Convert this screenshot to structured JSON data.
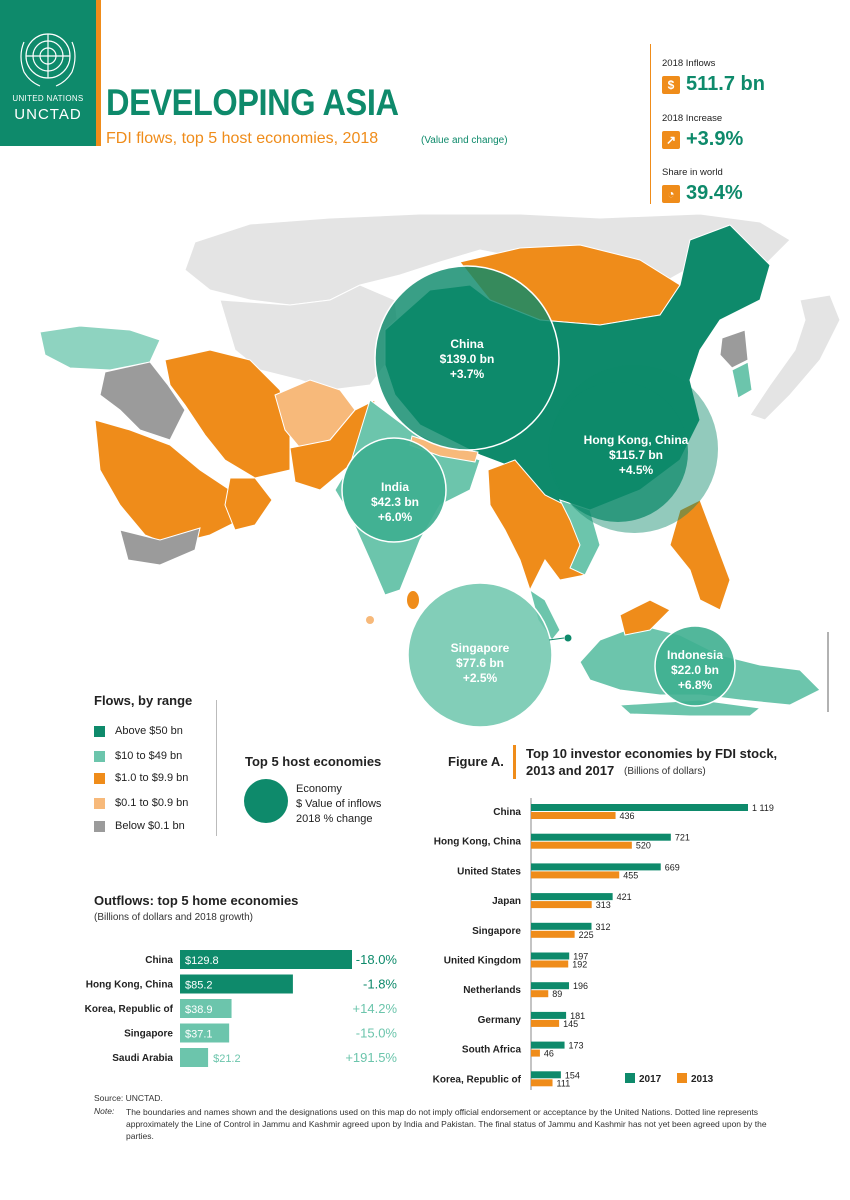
{
  "logo": {
    "org": "UNITED NATIONS",
    "name": "UNCTAD"
  },
  "header": {
    "title": "DEVELOPING ASIA",
    "subtitle": "FDI flows, top 5 host economies, 2018",
    "subtitle_note": "(Value and change)"
  },
  "kpis": [
    {
      "label": "2018 Inflows",
      "icon": "dollar-icon",
      "icon_glyph": "$",
      "value": "511.7 bn"
    },
    {
      "label": "2018 Increase",
      "icon": "growth-chart-icon",
      "icon_glyph": "↗",
      "value": "+3.9%"
    },
    {
      "label": "Share in world",
      "icon": "pie-icon",
      "icon_glyph": "◔",
      "value": "39.4%"
    }
  ],
  "colors": {
    "above50": "#0e8a6b",
    "r10to49": "#6cc5ac",
    "r1to9": "#ef8c1a",
    "r01to09": "#f7b97a",
    "below01": "#9b9b9b",
    "accent": "#ef8c1a",
    "series2017": "#0e8a6b",
    "series2013": "#ef8c1a"
  },
  "map_bubbles": [
    {
      "name": "China",
      "value": "$139.0 bn",
      "change": "+3.7%"
    },
    {
      "name": "Hong Kong, China",
      "value": "$115.7 bn",
      "change": "+4.5%"
    },
    {
      "name": "India",
      "value": "$42.3 bn",
      "change": "+6.0%"
    },
    {
      "name": "Singapore",
      "value": "$77.6 bn",
      "change": "+2.5%"
    },
    {
      "name": "Indonesia",
      "value": "$22.0 bn",
      "change": "+6.8%"
    }
  ],
  "legend": {
    "title": "Flows, by range",
    "items": [
      {
        "label": "Above $50 bn",
        "color": "#0e8a6b"
      },
      {
        "label": "$10 to $49 bn",
        "color": "#6cc5ac"
      },
      {
        "label": "$1.0 to $9.9 bn",
        "color": "#ef8c1a"
      },
      {
        "label": "$0.1 to $0.9 bn",
        "color": "#f7b97a"
      },
      {
        "label": "Below $0.1 bn",
        "color": "#9b9b9b"
      }
    ]
  },
  "top5": {
    "title": "Top 5 host economies",
    "lines": [
      "Economy",
      "$ Value of inflows",
      "2018 % change"
    ]
  },
  "figure_a": {
    "label": "Figure A.",
    "title_line1": "Top 10 investor economies by FDI stock,",
    "title_line2": "2013 and 2017",
    "unit": "(Billions of dollars)"
  },
  "outflows": {
    "title": "Outflows: top 5 home economies",
    "subtitle": "(Billions of dollars and 2018 growth)"
  },
  "footer": {
    "source": "Source: UNCTAD.",
    "note_label": "Note:",
    "note": "The boundaries and names shown and the designations used on this map do not imply official endorsement or acceptance by the United Nations. Dotted line represents approximately the Line of Control in Jammu and Kashmir agreed upon by India and Pakistan. The final status of Jammu and Kashmir has not yet been agreed upon by the parties."
  },
  "chart_data": [
    {
      "type": "bar",
      "orientation": "horizontal",
      "title": "Top 10 investor economies by FDI stock, 2013 and 2017",
      "unit": "(Billions of dollars)",
      "categories": [
        "China",
        "Hong Kong, China",
        "United States",
        "Japan",
        "Singapore",
        "United Kingdom",
        "Netherlands",
        "Germany",
        "South Africa",
        "Korea, Republic of"
      ],
      "series": [
        {
          "name": "2017",
          "color": "#0e8a6b",
          "values": [
            1119,
            721,
            669,
            421,
            312,
            197,
            196,
            181,
            173,
            154
          ],
          "labels": [
            "1 119",
            "721",
            "669",
            "421",
            "312",
            "197",
            "196",
            "181",
            "173",
            "154"
          ]
        },
        {
          "name": "2013",
          "color": "#ef8c1a",
          "values": [
            436,
            520,
            455,
            313,
            225,
            192,
            89,
            145,
            46,
            111
          ],
          "labels": [
            "436",
            "520",
            "455",
            "313",
            "225",
            "192",
            "89",
            "145",
            "46",
            "111"
          ]
        }
      ],
      "legend_position": "bottom-right",
      "xlim": [
        0,
        1119
      ]
    },
    {
      "type": "bar",
      "orientation": "horizontal",
      "title": "Outflows: top 5 home economies",
      "unit": "(Billions of dollars and 2018 growth)",
      "categories": [
        "China",
        "Hong Kong, China",
        "Korea, Republic of",
        "Singapore",
        "Saudi Arabia"
      ],
      "values": [
        129.8,
        85.2,
        38.9,
        37.1,
        21.2
      ],
      "value_labels": [
        "$129.8",
        "$85.2",
        "$38.9",
        "$37.1",
        "$21.2"
      ],
      "growth_labels": [
        "-18.0%",
        "-1.8%",
        "+14.2%",
        "-15.0%",
        "+191.5%"
      ],
      "bar_colors": [
        "#0e8a6b",
        "#0e8a6b",
        "#6cc5ac",
        "#6cc5ac",
        "#6cc5ac"
      ],
      "growth_colors": [
        "#0e8a6b",
        "#0e8a6b",
        "#6cc5ac",
        "#6cc5ac",
        "#6cc5ac"
      ],
      "xlim": [
        0,
        129.8
      ]
    }
  ]
}
